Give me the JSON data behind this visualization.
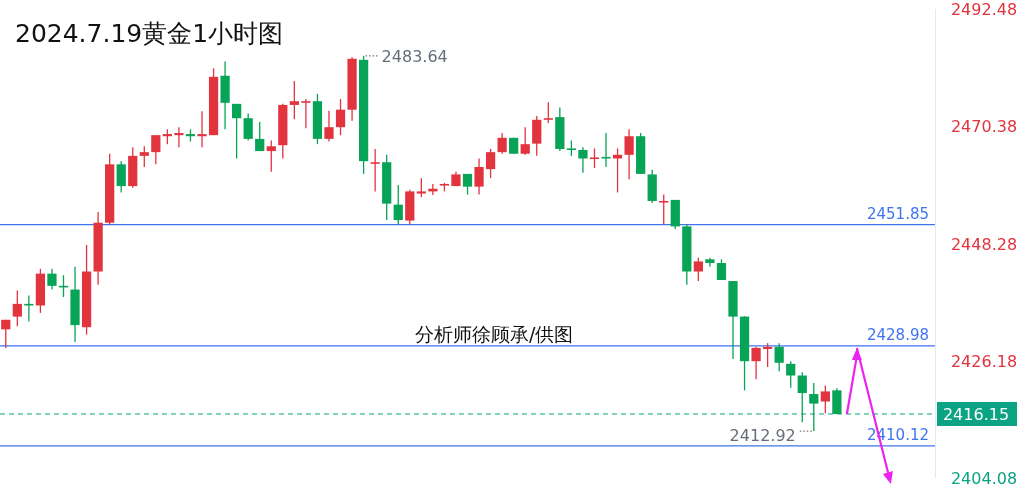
{
  "chart_data": {
    "type": "candlestick",
    "title": "2024.7.19黄金1小时图",
    "categories": [
      null,
      null,
      null,
      null,
      null,
      null,
      null,
      null,
      null,
      null,
      null,
      null,
      null,
      null,
      null,
      null,
      null,
      null,
      null,
      null,
      null,
      null,
      null,
      null,
      null,
      null,
      null,
      null,
      null,
      null,
      null,
      null,
      null,
      null,
      null,
      null,
      null,
      null,
      null,
      null,
      null,
      null,
      null,
      null,
      null,
      null,
      null,
      null,
      null,
      null,
      null,
      null,
      null,
      null,
      null,
      null,
      null,
      null,
      null,
      null,
      null,
      null,
      null,
      null,
      null,
      null,
      null,
      null,
      null,
      null,
      null,
      null,
      null,
      null,
      null,
      null,
      null,
      null,
      null,
      null,
      null
    ],
    "ohlc": [
      [
        2432.1,
        2433.9,
        2428.6,
        2433.9
      ],
      [
        2434.5,
        2439.4,
        2432.7,
        2436.9
      ],
      [
        2436.9,
        2438.5,
        2433.6,
        2436.6
      ],
      [
        2436.6,
        2443.5,
        2435.2,
        2442.6
      ],
      [
        2442.6,
        2443.5,
        2439.6,
        2440.3
      ],
      [
        2440.3,
        2442.3,
        2438.2,
        2440.0
      ],
      [
        2439.6,
        2443.9,
        2429.7,
        2432.9
      ],
      [
        2432.5,
        2448.0,
        2431.1,
        2443.0
      ],
      [
        2443.0,
        2454.2,
        2440.5,
        2452.2
      ],
      [
        2452.2,
        2465.2,
        2451.9,
        2463.2
      ],
      [
        2463.2,
        2463.8,
        2457.9,
        2459.1
      ],
      [
        2459.1,
        2466.4,
        2458.8,
        2464.8
      ],
      [
        2464.8,
        2466.6,
        2462.7,
        2465.5
      ],
      [
        2465.5,
        2468.7,
        2463.2,
        2468.7
      ],
      [
        2468.5,
        2469.8,
        2467.0,
        2468.9
      ],
      [
        2468.7,
        2470.2,
        2466.4,
        2469.1
      ],
      [
        2468.9,
        2469.8,
        2467.5,
        2468.5
      ],
      [
        2468.5,
        2473.2,
        2466.4,
        2468.9
      ],
      [
        2468.7,
        2481.3,
        2468.7,
        2479.7
      ],
      [
        2479.9,
        2482.6,
        2469.8,
        2474.8
      ],
      [
        2474.6,
        2474.6,
        2464.3,
        2471.9
      ],
      [
        2471.9,
        2472.8,
        2467.7,
        2468.0
      ],
      [
        2468.0,
        2471.2,
        2465.7,
        2465.7
      ],
      [
        2465.7,
        2467.7,
        2461.8,
        2466.6
      ],
      [
        2466.8,
        2474.6,
        2464.3,
        2474.4
      ],
      [
        2474.4,
        2478.9,
        2471.7,
        2475.1
      ],
      [
        2474.9,
        2475.5,
        2470.0,
        2475.1
      ],
      [
        2475.1,
        2476.5,
        2467.0,
        2468.0
      ],
      [
        2468.0,
        2473.3,
        2467.5,
        2470.2
      ],
      [
        2470.2,
        2475.5,
        2468.7,
        2473.5
      ],
      [
        2473.5,
        2483.4,
        2471.4,
        2483.1
      ],
      [
        2482.9,
        2483.64,
        2461.4,
        2463.8
      ],
      [
        2463.4,
        2466.1,
        2458.1,
        2463.6
      ],
      [
        2463.6,
        2465.0,
        2452.7,
        2455.8
      ],
      [
        2455.6,
        2459.3,
        2451.9,
        2452.7
      ],
      [
        2452.6,
        2458.4,
        2451.9,
        2458.1
      ],
      [
        2457.7,
        2460.6,
        2457.0,
        2458.1
      ],
      [
        2458.1,
        2459.5,
        2457.4,
        2458.6
      ],
      [
        2459.3,
        2459.7,
        2458.1,
        2459.5
      ],
      [
        2459.1,
        2461.8,
        2459.1,
        2461.3
      ],
      [
        2461.4,
        2461.4,
        2457.5,
        2459.0
      ],
      [
        2459.0,
        2464.3,
        2457.5,
        2462.7
      ],
      [
        2462.3,
        2466.1,
        2460.6,
        2465.5
      ],
      [
        2465.5,
        2469.1,
        2465.2,
        2468.2
      ],
      [
        2468.2,
        2468.2,
        2465.2,
        2465.2
      ],
      [
        2465.2,
        2470.2,
        2465.0,
        2467.0
      ],
      [
        2467.1,
        2472.3,
        2464.8,
        2471.6
      ],
      [
        2471.7,
        2474.9,
        2471.0,
        2471.9
      ],
      [
        2472.1,
        2473.9,
        2465.7,
        2466.1
      ],
      [
        2466.2,
        2467.7,
        2464.8,
        2465.9
      ],
      [
        2465.9,
        2466.4,
        2461.6,
        2464.3
      ],
      [
        2464.3,
        2466.2,
        2462.5,
        2464.5
      ],
      [
        2464.6,
        2469.1,
        2462.7,
        2464.3
      ],
      [
        2464.3,
        2466.2,
        2457.9,
        2465.0
      ],
      [
        2465.0,
        2469.8,
        2460.4,
        2468.5
      ],
      [
        2468.5,
        2469.1,
        2461.4,
        2461.4
      ],
      [
        2461.3,
        2462.2,
        2455.9,
        2456.3
      ],
      [
        2456.1,
        2457.5,
        2451.9,
        2456.3
      ],
      [
        2456.5,
        2456.5,
        2451.0,
        2451.5
      ],
      [
        2451.5,
        2451.9,
        2440.5,
        2443.0
      ],
      [
        2443.0,
        2445.6,
        2441.2,
        2444.9
      ],
      [
        2445.3,
        2445.6,
        2443.9,
        2444.6
      ],
      [
        2444.6,
        2445.3,
        2441.4,
        2441.4
      ],
      [
        2441.2,
        2441.2,
        2426.5,
        2434.5
      ],
      [
        2434.5,
        2434.6,
        2420.6,
        2426.1
      ],
      [
        2426.1,
        2428.8,
        2422.7,
        2428.6
      ],
      [
        2428.4,
        2429.5,
        2425.0,
        2428.8
      ],
      [
        2428.8,
        2429.5,
        2424.2,
        2425.8
      ],
      [
        2425.6,
        2426.1,
        2421.1,
        2423.4
      ],
      [
        2423.4,
        2424.0,
        2414.6,
        2420.1
      ],
      [
        2419.9,
        2422.0,
        2412.92,
        2418.1
      ],
      [
        2418.5,
        2421.5,
        2416.3,
        2420.4
      ],
      [
        2420.6,
        2421.0,
        2416.15,
        2416.15
      ],
      null,
      null,
      null,
      null,
      null,
      null,
      null,
      null
    ],
    "colors": [
      "#e2343f",
      "#e2343f",
      "#07a356",
      "#e2343f",
      "#07a356",
      "#07a356",
      "#07a356",
      "#e2343f",
      "#e2343f",
      "#e2343f",
      "#07a356",
      "#e2343f",
      "#e2343f",
      "#e2343f",
      "#e2343f",
      "#e2343f",
      "#07a356",
      "#e2343f",
      "#e2343f",
      "#07a356",
      "#07a356",
      "#07a356",
      "#07a356",
      "#e2343f",
      "#e2343f",
      "#e2343f",
      "#e2343f",
      "#07a356",
      "#e2343f",
      "#e2343f",
      "#e2343f",
      "#07a356",
      "#e2343f",
      "#07a356",
      "#07a356",
      "#e2343f",
      "#e2343f",
      "#e2343f",
      "#e2343f",
      "#e2343f",
      "#07a356",
      "#e2343f",
      "#e2343f",
      "#e2343f",
      "#07a356",
      "#e2343f",
      "#e2343f",
      "#e2343f",
      "#07a356",
      "#07a356",
      "#07a356",
      "#e2343f",
      "#07a356",
      "#e2343f",
      "#e2343f",
      "#07a356",
      "#07a356",
      "#e2343f",
      "#07a356",
      "#07a356",
      "#e2343f",
      "#07a356",
      "#07a356",
      "#07a356",
      "#07a356",
      "#e2343f",
      "#e2343f",
      "#07a356",
      "#07a356",
      "#07a356",
      "#07a356",
      "#e2343f",
      "#07a356",
      null,
      null,
      null,
      null,
      null,
      null,
      null,
      null
    ],
    "ylim": [
      2404.08,
      2492.48
    ],
    "yticks": [
      2404.08,
      2426.18,
      2448.28,
      2470.38,
      2492.48
    ],
    "ref_lines": [
      {
        "axis": "y",
        "value": 2451.85,
        "label": "2451.85",
        "color": "#3f73f0",
        "line_style": "solid"
      },
      {
        "axis": "y",
        "value": 2428.98,
        "label": "2428.98",
        "color": "#3f73f0",
        "line_style": "solid"
      },
      {
        "axis": "y",
        "value": 2410.12,
        "label": "2410.12",
        "color": "#3f73f0",
        "line_style": "solid"
      },
      {
        "axis": "y",
        "value": 2416.15,
        "label": "2416.15",
        "color": "#0aa383",
        "line_style": "dashed"
      }
    ],
    "annotations": [
      "2483.64",
      "2412.92",
      "分析师徐顾承/供图"
    ],
    "grid": false
  }
}
